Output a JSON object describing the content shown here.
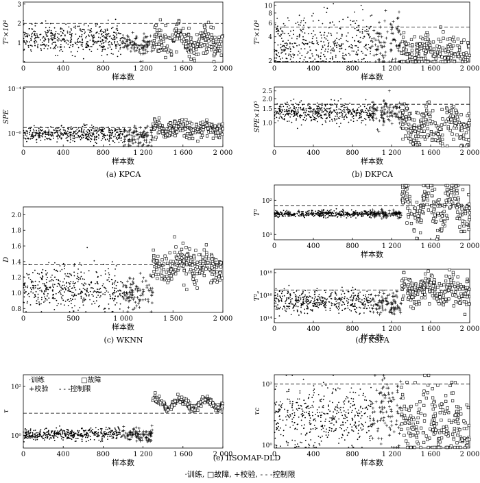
{
  "legend_bottom": {
    "train": "·训练,",
    "fault": "□故障,",
    "val": "+校验,",
    "limit": "- - -控制限"
  },
  "legend_e": {
    "train": "·训练",
    "fault": "□故障",
    "val": "+校验",
    "limit": "- - -控制限"
  },
  "colors": {
    "ink": "#000000",
    "axis": "#000000"
  },
  "chart_data": [
    {
      "id": "a1",
      "type": "scatter",
      "caption": "(a)  KPCA",
      "xlabel": "样本数",
      "ylabel": "T²×10⁴",
      "xlim": [
        0,
        2000
      ],
      "ylim": [
        0,
        3.1
      ],
      "log": false,
      "xticks": [
        0,
        400,
        800,
        1200,
        1600,
        2000
      ],
      "xticklabels": [
        "0",
        "400",
        "800",
        "1 200",
        "1 600",
        "2 000"
      ],
      "yticks": [
        1,
        2,
        3
      ],
      "yticklabels": [
        "1",
        "2",
        "3"
      ],
      "limit": 2.0,
      "segments": [
        {
          "role": "train",
          "start": 0,
          "end": 1000,
          "mean": 1.2,
          "spread": 0.35
        },
        {
          "role": "val",
          "start": 1000,
          "end": 1300,
          "mean": 0.9,
          "spread": 0.3
        },
        {
          "role": "fault",
          "start": 1300,
          "end": 2000,
          "mean": 1.05,
          "spread": 0.35,
          "wave": 0.4
        }
      ]
    },
    {
      "id": "a2",
      "type": "scatter",
      "caption": "",
      "xlabel": "样本数",
      "ylabel": "SPE",
      "xlim": [
        0,
        2000
      ],
      "ylim": [
        2.5e-07,
        0.00012
      ],
      "log": true,
      "xticks": [
        0,
        400,
        800,
        1200,
        1600,
        2000
      ],
      "xticklabels": [
        "0",
        "400",
        "800",
        "1 200",
        "1 600",
        "2 000"
      ],
      "yticks": [
        1e-06,
        0.0001
      ],
      "yticklabels": [
        "10⁻⁶",
        "10⁻⁴"
      ],
      "limit": 1.8e-06,
      "segments": [
        {
          "role": "train",
          "start": 0,
          "end": 1000,
          "mean": 9e-07,
          "spread": 0.18
        },
        {
          "role": "val",
          "start": 1000,
          "end": 1300,
          "mean": 7e-07,
          "spread": 0.22
        },
        {
          "role": "fault",
          "start": 1300,
          "end": 2000,
          "mean": 1.6e-06,
          "spread": 0.18,
          "wave": 0.12
        }
      ]
    },
    {
      "id": "b1",
      "type": "scatter",
      "caption": "(b)  DKPCA",
      "xlabel": "样本数",
      "ylabel": "T²×10⁴",
      "xlim": [
        0,
        2000
      ],
      "ylim": [
        1.9,
        11
      ],
      "log": true,
      "xticks": [
        0,
        400,
        800,
        1200,
        1600,
        2000
      ],
      "xticklabels": [
        "0",
        "400",
        "800",
        "1 200",
        "1 600",
        "2 000"
      ],
      "yticks": [
        2,
        4,
        6,
        8,
        10
      ],
      "yticklabels": [
        "2",
        "4",
        "6",
        "8",
        "10"
      ],
      "limit": 5.3,
      "segments": [
        {
          "role": "train",
          "start": 0,
          "end": 1000,
          "mean": 3.0,
          "spread": 0.2
        },
        {
          "role": "val",
          "start": 1000,
          "end": 1300,
          "mean": 2.9,
          "spread": 0.18
        },
        {
          "role": "fault",
          "start": 1300,
          "end": 2000,
          "mean": 2.5,
          "spread": 0.12,
          "wave": 0.05
        }
      ]
    },
    {
      "id": "b2",
      "type": "scatter",
      "caption": "",
      "xlabel": "样本数",
      "ylabel": "SPE×10⁵",
      "xlim": [
        0,
        2000
      ],
      "ylim": [
        0.5,
        2.8
      ],
      "log": true,
      "xticks": [
        0,
        400,
        800,
        1200,
        1600,
        2000
      ],
      "xticklabels": [
        "0",
        "400",
        "800",
        "1 200",
        "1 600",
        "2 000"
      ],
      "yticks": [
        1.0,
        1.5,
        2.0,
        2.5
      ],
      "yticklabels": [
        "1.0",
        "1.5",
        "2.0",
        "2.5"
      ],
      "limit": 1.7,
      "segments": [
        {
          "role": "train",
          "start": 0,
          "end": 1000,
          "mean": 1.35,
          "spread": 0.06
        },
        {
          "role": "val",
          "start": 1000,
          "end": 1300,
          "mean": 1.3,
          "spread": 0.08
        },
        {
          "role": "fault",
          "start": 1300,
          "end": 2000,
          "mean": 0.9,
          "spread": 0.12,
          "wave": 0.1
        }
      ]
    },
    {
      "id": "c",
      "type": "scatter",
      "caption": "(c)  WKNN",
      "xlabel": "样本数",
      "ylabel": "D",
      "xlim": [
        0,
        2000
      ],
      "ylim": [
        0.75,
        2.1
      ],
      "log": false,
      "xticks": [
        0,
        500,
        1000,
        1500,
        2000
      ],
      "xticklabels": [
        "0",
        "500",
        "1 000",
        "1 500",
        "2 000"
      ],
      "yticks": [
        0.8,
        1.0,
        1.2,
        1.4,
        1.6,
        1.8,
        2.0
      ],
      "yticklabels": [
        "0.8",
        "1.0",
        "1.2",
        "1.4",
        "1.6",
        "1.8",
        "2.0"
      ],
      "limit": 1.36,
      "segments": [
        {
          "role": "train",
          "start": 0,
          "end": 1000,
          "mean": 1.05,
          "spread": 0.14
        },
        {
          "role": "val",
          "start": 1000,
          "end": 1300,
          "mean": 1.0,
          "spread": 0.12
        },
        {
          "role": "fault",
          "start": 1300,
          "end": 2000,
          "mean": 1.35,
          "spread": 0.11,
          "wave": 0.08
        }
      ]
    },
    {
      "id": "d1",
      "type": "scatter",
      "caption": "(d)  KSFA",
      "xlabel": "样本数",
      "ylabel": "T²",
      "xlim": [
        0,
        2000
      ],
      "ylim": [
        7,
        280
      ],
      "log": true,
      "xticks": [
        0,
        400,
        800,
        1200,
        1600,
        2000
      ],
      "xticklabels": [
        "0",
        "400",
        "800",
        "1 200",
        "1 600",
        "2 000"
      ],
      "yticks": [
        10,
        100
      ],
      "yticklabels": [
        "10¹",
        "10²"
      ],
      "limit": 70,
      "segments": [
        {
          "role": "train",
          "start": 0,
          "end": 1000,
          "mean": 40,
          "spread": 0.05
        },
        {
          "role": "val",
          "start": 1000,
          "end": 1300,
          "mean": 40,
          "spread": 0.05
        },
        {
          "role": "fault",
          "start": 1300,
          "end": 2000,
          "mean": 70,
          "spread": 0.3,
          "wave": 0.4
        }
      ]
    },
    {
      "id": "d2",
      "type": "scatter",
      "caption": "",
      "xlabel": "样本数",
      "ylabel": "T²ₑ",
      "xlim": [
        0,
        2000
      ],
      "ylim": [
        40000000000000.0,
        2e+18
      ],
      "log": true,
      "xticks": [
        0,
        400,
        800,
        1200,
        1600,
        2000
      ],
      "xticklabels": [
        "0",
        "400",
        "800",
        "1 200",
        "1 600",
        "2 000"
      ],
      "yticks": [
        100000000000000.0,
        1e+16,
        1e+18
      ],
      "yticklabels": [
        "10¹⁴",
        "10¹⁶",
        "10¹⁸"
      ],
      "limit": 3e+16,
      "segments": [
        {
          "role": "train",
          "start": 0,
          "end": 1000,
          "mean": 3000000000000000.0,
          "spread": 0.5
        },
        {
          "role": "val",
          "start": 1000,
          "end": 1300,
          "mean": 2000000000000000.0,
          "spread": 0.5
        },
        {
          "role": "fault",
          "start": 1300,
          "end": 2000,
          "mean": 3e+16,
          "spread": 0.6,
          "wave": 0.4
        }
      ]
    },
    {
      "id": "e1",
      "type": "scatter",
      "caption": "(e)  IISOMAP-DLD",
      "xlabel": "样本数",
      "ylabel": "τ",
      "xlim": [
        0,
        2000
      ],
      "ylim": [
        0.3,
        300
      ],
      "log": true,
      "xticks": [
        0,
        400,
        800,
        1200,
        1600,
        2000
      ],
      "xticklabels": [
        "0",
        "400",
        "800",
        "1 200",
        "1 600",
        "2 000"
      ],
      "yticks": [
        1,
        100
      ],
      "yticklabels": [
        "10⁰",
        "10²"
      ],
      "limit": 8,
      "segments": [
        {
          "role": "train",
          "start": 0,
          "end": 1000,
          "mean": 1.1,
          "spread": 0.12
        },
        {
          "role": "val",
          "start": 1000,
          "end": 1300,
          "mean": 1.0,
          "spread": 0.15
        },
        {
          "role": "fault",
          "start": 1300,
          "end": 2000,
          "mean": 20,
          "spread": 0.08,
          "wave": 0.2
        }
      ]
    },
    {
      "id": "e2",
      "type": "scatter",
      "caption": "",
      "xlabel": "样本数",
      "ylabel": "τc",
      "xlim": [
        0,
        2000
      ],
      "ylim": [
        0.8,
        200
      ],
      "log": true,
      "xticks": [
        0,
        400,
        800,
        1200,
        1600,
        2000
      ],
      "xticklabels": [
        "0",
        "400",
        "800",
        "1 200",
        "1 600",
        "2 000"
      ],
      "yticks": [
        1,
        100
      ],
      "yticklabels": [
        "10⁰",
        "10²"
      ],
      "limit": 100,
      "segments": [
        {
          "role": "train",
          "start": 0,
          "end": 1000,
          "mean": 8,
          "spread": 0.5
        },
        {
          "role": "val",
          "start": 1000,
          "end": 1300,
          "mean": 10,
          "spread": 0.6
        },
        {
          "role": "fault",
          "start": 1300,
          "end": 2000,
          "mean": 5,
          "spread": 0.6,
          "wave": 0.2
        }
      ]
    }
  ]
}
